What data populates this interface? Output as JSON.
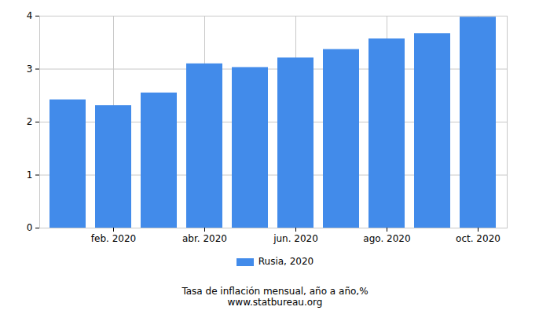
{
  "chart_data": {
    "type": "bar",
    "title": "Tasa de inflación mensual, año a año,%",
    "subtitle": "www.statbureau.org",
    "categories": [
      null,
      "feb. 2020",
      null,
      "abr. 2020",
      null,
      "jun. 2020",
      null,
      "ago. 2020",
      null,
      "oct. 2020"
    ],
    "series": [
      {
        "name": "Rusia, 2020",
        "color": "#428bea",
        "values": [
          2.42,
          2.31,
          2.55,
          3.1,
          3.03,
          3.21,
          3.37,
          3.57,
          3.67,
          3.98
        ]
      }
    ],
    "ylim": [
      0,
      4
    ],
    "yticks": [
      0,
      1,
      2,
      3,
      4
    ],
    "grid": true,
    "legend": "bottom"
  }
}
